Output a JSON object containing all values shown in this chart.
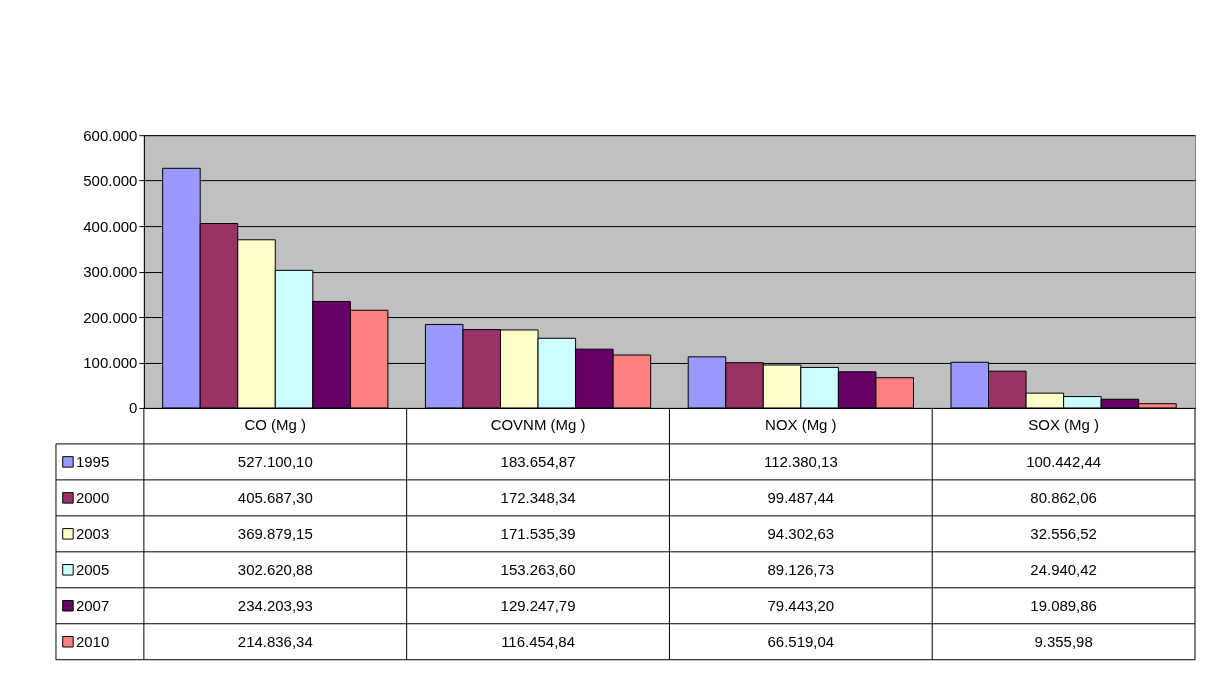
{
  "chart_data": {
    "type": "bar",
    "categories": [
      "CO    (Mg    )",
      "COVNM  (Mg    )",
      "NOX    (Mg    )",
      "SOX    (Mg    )"
    ],
    "series": [
      {
        "name": "1995",
        "color": "#9999ff",
        "values": [
          527100.1,
          183654.87,
          112380.13,
          100442.44
        ],
        "value_labels": [
          "527.100,10",
          "183.654,87",
          "112.380,13",
          "100.442,44"
        ]
      },
      {
        "name": "2000",
        "color": "#993366",
        "values": [
          405687.3,
          172348.34,
          99487.44,
          80862.06
        ],
        "value_labels": [
          "405.687,30",
          "172.348,34",
          "99.487,44",
          "80.862,06"
        ]
      },
      {
        "name": "2003",
        "color": "#ffffcc",
        "values": [
          369879.15,
          171535.39,
          94302.63,
          32556.52
        ],
        "value_labels": [
          "369.879,15",
          "171.535,39",
          "94.302,63",
          "32.556,52"
        ]
      },
      {
        "name": "2005",
        "color": "#ccffff",
        "values": [
          302620.88,
          153263.6,
          89126.73,
          24940.42
        ],
        "value_labels": [
          "302.620,88",
          "153.263,60",
          "89.126,73",
          "24.940,42"
        ]
      },
      {
        "name": "2007",
        "color": "#660066",
        "values": [
          234203.93,
          129247.79,
          79443.2,
          19089.86
        ],
        "value_labels": [
          "234.203,93",
          "129.247,79",
          "79.443,20",
          "19.089,86"
        ]
      },
      {
        "name": "2010",
        "color": "#ff8080",
        "values": [
          214836.34,
          116454.84,
          66519.04,
          9355.98
        ],
        "value_labels": [
          "214.836,34",
          "116.454,84",
          "66.519,04",
          "9.355,98"
        ]
      }
    ],
    "ylim": [
      0,
      600000
    ],
    "yticks": [
      0,
      {
        "value": 100000,
        "label": "100.000"
      },
      {
        "value": 200000,
        "label": "200.000"
      },
      {
        "value": 300000,
        "label": "300.000"
      },
      {
        "value": 400000,
        "label": "400.000"
      },
      {
        "value": 500000,
        "label": "500.000"
      },
      {
        "value": 600000,
        "label": "600.000"
      }
    ],
    "grid": "y",
    "legend": "bottom"
  }
}
